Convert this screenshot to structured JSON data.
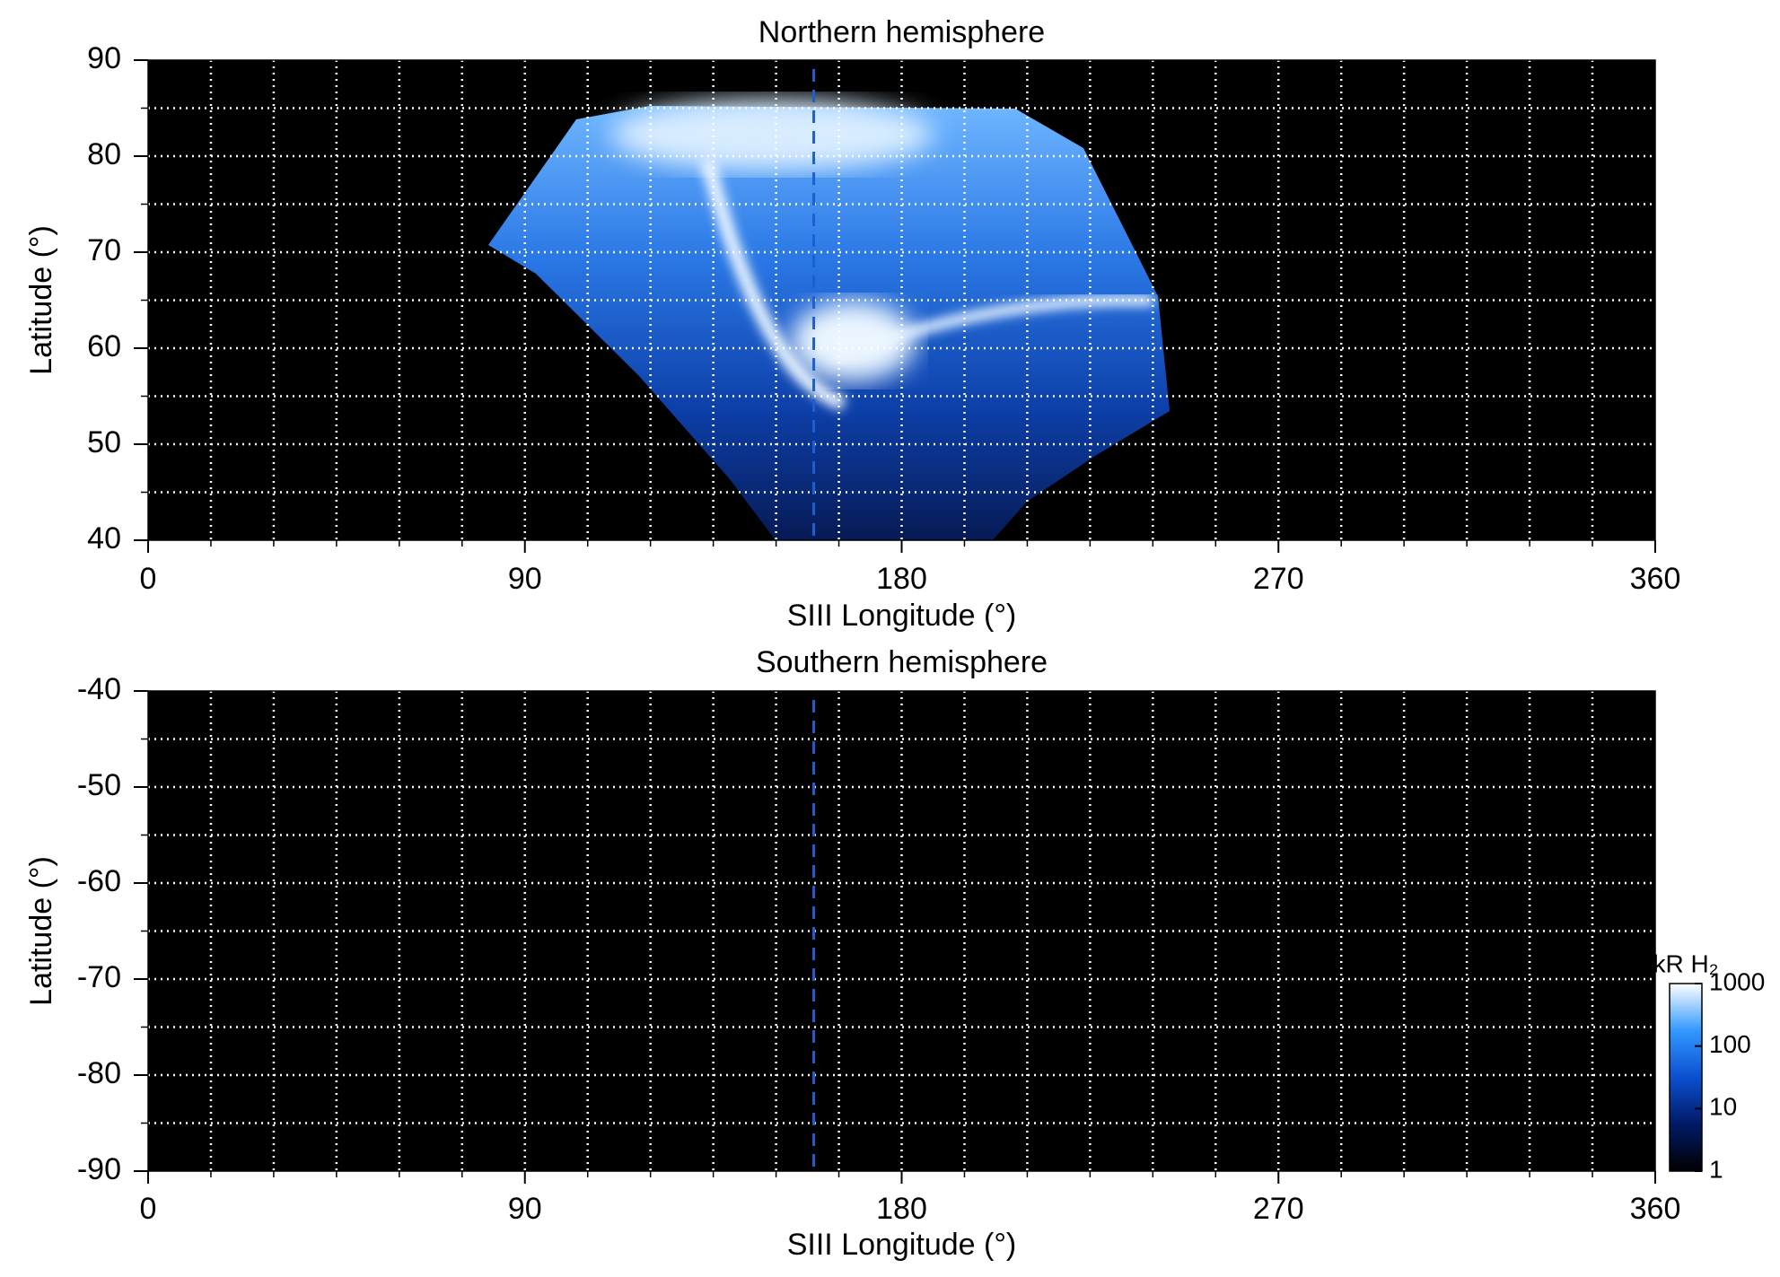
{
  "chart_data": [
    {
      "type": "map",
      "title": "Northern hemisphere",
      "xlabel": "SIII Longitude (°)",
      "ylabel": "Latitude (°)",
      "xlim": [
        0,
        360
      ],
      "ylim": [
        40,
        90
      ],
      "xticks": [
        0,
        90,
        180,
        270,
        360
      ],
      "yticks": [
        40,
        50,
        60,
        70,
        80,
        90
      ],
      "xgrid": [
        15,
        30,
        45,
        60,
        75,
        90,
        105,
        120,
        135,
        150,
        165,
        180,
        195,
        210,
        225,
        240,
        255,
        270,
        285,
        300,
        315,
        330,
        345
      ],
      "ygrid": [
        45,
        50,
        55,
        60,
        65,
        70,
        75,
        80,
        85
      ],
      "grid": true,
      "marker_longitude": 159,
      "marker_color": "#1e5fd0"
    },
    {
      "type": "map",
      "title": "Southern hemisphere",
      "xlabel": "SIII Longitude (°)",
      "ylabel": "Latitude (°)",
      "xlim": [
        0,
        360
      ],
      "ylim": [
        -90,
        -40
      ],
      "xticks": [
        0,
        90,
        180,
        270,
        360
      ],
      "yticks": [
        -90,
        -80,
        -70,
        -60,
        -50,
        -40
      ],
      "xgrid": [
        15,
        30,
        45,
        60,
        75,
        90,
        105,
        120,
        135,
        150,
        165,
        180,
        195,
        210,
        225,
        240,
        255,
        270,
        285,
        300,
        315,
        330,
        345
      ],
      "ygrid": [
        -85,
        -80,
        -75,
        -70,
        -65,
        -60,
        -55,
        -50,
        -45
      ],
      "grid": true,
      "marker_longitude": 159,
      "marker_color": "#1e5fd0",
      "colorbar": {
        "label": "kR H₂",
        "log": true,
        "lim": [
          1,
          1000
        ],
        "ticks": [
          1,
          10,
          100,
          1000
        ],
        "colors": [
          "#000000",
          "#001a66",
          "#0a4fd0",
          "#3399ff",
          "#ffffff"
        ]
      }
    }
  ]
}
